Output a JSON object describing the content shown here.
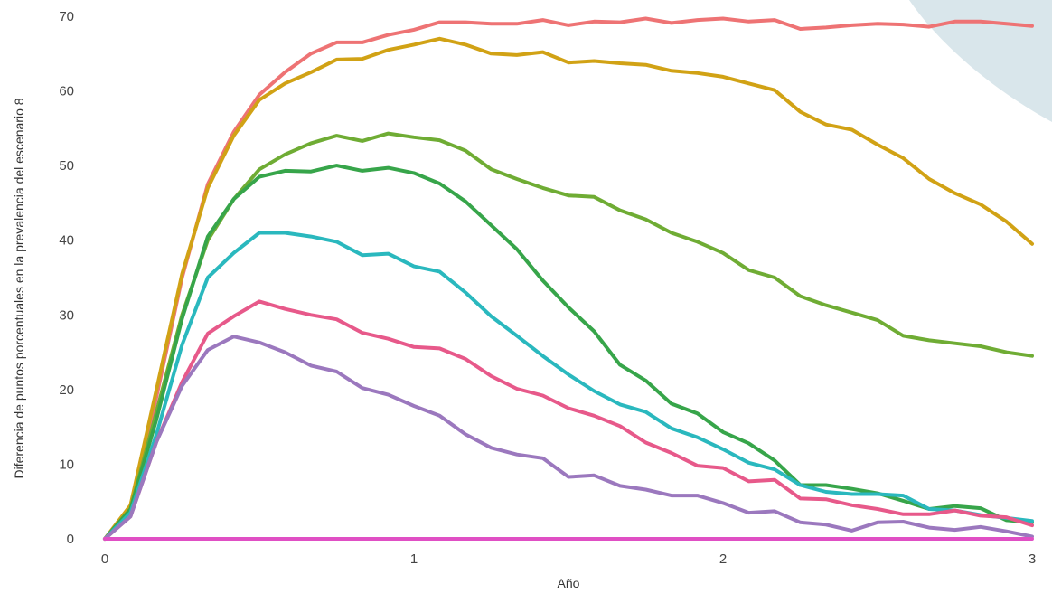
{
  "chart_data": {
    "type": "line",
    "title": "",
    "xlabel": "Año",
    "ylabel": "Diferencia de puntos porcentuales en la prevalencia del escenario 8",
    "xlim": [
      0,
      3
    ],
    "ylim": [
      0,
      70
    ],
    "x_ticks": [
      0,
      1,
      2,
      3
    ],
    "y_ticks": [
      0,
      10,
      20,
      30,
      40,
      50,
      60,
      70
    ],
    "grid": false,
    "legend": "none",
    "series": [
      {
        "color": "#ee7374",
        "points": [
          [
            0,
            0
          ],
          [
            0.083,
            4
          ],
          [
            0.167,
            19
          ],
          [
            0.25,
            35
          ],
          [
            0.333,
            47.5
          ],
          [
            0.417,
            54.5
          ],
          [
            0.5,
            59.5
          ],
          [
            0.583,
            62.5
          ],
          [
            0.667,
            65
          ],
          [
            0.75,
            66.5
          ],
          [
            0.833,
            66.5
          ],
          [
            0.917,
            67.5
          ],
          [
            1.0,
            68.2
          ],
          [
            1.083,
            69.2
          ],
          [
            1.167,
            69.2
          ],
          [
            1.25,
            69
          ],
          [
            1.333,
            69
          ],
          [
            1.417,
            69.5
          ],
          [
            1.5,
            68.8
          ],
          [
            1.583,
            69.3
          ],
          [
            1.667,
            69.2
          ],
          [
            1.75,
            69.7
          ],
          [
            1.833,
            69.1
          ],
          [
            1.917,
            69.5
          ],
          [
            2.0,
            69.7
          ],
          [
            2.083,
            69.3
          ],
          [
            2.167,
            69.5
          ],
          [
            2.25,
            68.3
          ],
          [
            2.333,
            68.5
          ],
          [
            2.417,
            68.8
          ],
          [
            2.5,
            69
          ],
          [
            2.583,
            68.9
          ],
          [
            2.667,
            68.6
          ],
          [
            2.75,
            69.3
          ],
          [
            2.833,
            69.3
          ],
          [
            2.917,
            69
          ],
          [
            3.0,
            68.7
          ]
        ]
      },
      {
        "color": "#d1a215",
        "points": [
          [
            0,
            0
          ],
          [
            0.083,
            4.5
          ],
          [
            0.167,
            20
          ],
          [
            0.25,
            35.5
          ],
          [
            0.333,
            47
          ],
          [
            0.417,
            54
          ],
          [
            0.5,
            58.8
          ],
          [
            0.583,
            61
          ],
          [
            0.667,
            62.5
          ],
          [
            0.75,
            64.2
          ],
          [
            0.833,
            64.3
          ],
          [
            0.917,
            65.5
          ],
          [
            1.0,
            66.2
          ],
          [
            1.083,
            67
          ],
          [
            1.167,
            66.2
          ],
          [
            1.25,
            65
          ],
          [
            1.333,
            64.8
          ],
          [
            1.417,
            65.2
          ],
          [
            1.5,
            63.8
          ],
          [
            1.583,
            64
          ],
          [
            1.667,
            63.7
          ],
          [
            1.75,
            63.5
          ],
          [
            1.833,
            62.7
          ],
          [
            1.917,
            62.4
          ],
          [
            2.0,
            61.9
          ],
          [
            2.083,
            61
          ],
          [
            2.167,
            60.1
          ],
          [
            2.25,
            57.2
          ],
          [
            2.333,
            55.5
          ],
          [
            2.417,
            54.8
          ],
          [
            2.5,
            52.8
          ],
          [
            2.583,
            51
          ],
          [
            2.667,
            48.2
          ],
          [
            2.75,
            46.3
          ],
          [
            2.833,
            44.8
          ],
          [
            2.917,
            42.5
          ],
          [
            3.0,
            39.5
          ]
        ]
      },
      {
        "color": "#6fac34",
        "points": [
          [
            0,
            0
          ],
          [
            0.083,
            4
          ],
          [
            0.167,
            17
          ],
          [
            0.25,
            30
          ],
          [
            0.333,
            40
          ],
          [
            0.417,
            45.5
          ],
          [
            0.5,
            49.5
          ],
          [
            0.583,
            51.5
          ],
          [
            0.667,
            53
          ],
          [
            0.75,
            54
          ],
          [
            0.833,
            53.3
          ],
          [
            0.917,
            54.3
          ],
          [
            1.0,
            53.8
          ],
          [
            1.083,
            53.4
          ],
          [
            1.167,
            52
          ],
          [
            1.25,
            49.5
          ],
          [
            1.333,
            48.2
          ],
          [
            1.417,
            47
          ],
          [
            1.5,
            46
          ],
          [
            1.583,
            45.8
          ],
          [
            1.667,
            44
          ],
          [
            1.75,
            42.8
          ],
          [
            1.833,
            41
          ],
          [
            1.917,
            39.8
          ],
          [
            2.0,
            38.3
          ],
          [
            2.083,
            36
          ],
          [
            2.167,
            35
          ],
          [
            2.25,
            32.5
          ],
          [
            2.333,
            31.3
          ],
          [
            2.417,
            30.3
          ],
          [
            2.5,
            29.3
          ],
          [
            2.583,
            27.2
          ],
          [
            2.667,
            26.6
          ],
          [
            2.75,
            26.2
          ],
          [
            2.833,
            25.8
          ],
          [
            2.917,
            25
          ],
          [
            3.0,
            24.5
          ]
        ]
      },
      {
        "color": "#37a54a",
        "points": [
          [
            0,
            0
          ],
          [
            0.083,
            4
          ],
          [
            0.167,
            16
          ],
          [
            0.25,
            29.5
          ],
          [
            0.333,
            40.5
          ],
          [
            0.417,
            45.5
          ],
          [
            0.5,
            48.5
          ],
          [
            0.583,
            49.3
          ],
          [
            0.667,
            49.2
          ],
          [
            0.75,
            50
          ],
          [
            0.833,
            49.3
          ],
          [
            0.917,
            49.7
          ],
          [
            1.0,
            49
          ],
          [
            1.083,
            47.6
          ],
          [
            1.167,
            45.2
          ],
          [
            1.25,
            42
          ],
          [
            1.333,
            38.8
          ],
          [
            1.417,
            34.6
          ],
          [
            1.5,
            31
          ],
          [
            1.583,
            27.8
          ],
          [
            1.667,
            23.3
          ],
          [
            1.75,
            21.2
          ],
          [
            1.833,
            18.1
          ],
          [
            1.917,
            16.8
          ],
          [
            2.0,
            14.3
          ],
          [
            2.083,
            12.8
          ],
          [
            2.167,
            10.5
          ],
          [
            2.25,
            7.2
          ],
          [
            2.333,
            7.2
          ],
          [
            2.417,
            6.7
          ],
          [
            2.5,
            6.1
          ],
          [
            2.583,
            5.1
          ],
          [
            2.667,
            4
          ],
          [
            2.75,
            4.4
          ],
          [
            2.833,
            4.1
          ],
          [
            2.917,
            2.5
          ],
          [
            3.0,
            2.2
          ]
        ]
      },
      {
        "color": "#2ab8be",
        "points": [
          [
            0,
            0
          ],
          [
            0.083,
            3.5
          ],
          [
            0.167,
            14
          ],
          [
            0.25,
            26
          ],
          [
            0.333,
            35
          ],
          [
            0.417,
            38.3
          ],
          [
            0.5,
            41
          ],
          [
            0.583,
            41
          ],
          [
            0.667,
            40.5
          ],
          [
            0.75,
            39.8
          ],
          [
            0.833,
            38
          ],
          [
            0.917,
            38.2
          ],
          [
            1.0,
            36.5
          ],
          [
            1.083,
            35.8
          ],
          [
            1.167,
            33
          ],
          [
            1.25,
            29.8
          ],
          [
            1.333,
            27.2
          ],
          [
            1.417,
            24.5
          ],
          [
            1.5,
            22
          ],
          [
            1.583,
            19.8
          ],
          [
            1.667,
            18
          ],
          [
            1.75,
            17
          ],
          [
            1.833,
            14.8
          ],
          [
            1.917,
            13.6
          ],
          [
            2.0,
            12
          ],
          [
            2.083,
            10.2
          ],
          [
            2.167,
            9.3
          ],
          [
            2.25,
            7.2
          ],
          [
            2.333,
            6.3
          ],
          [
            2.417,
            6
          ],
          [
            2.5,
            6
          ],
          [
            2.583,
            5.8
          ],
          [
            2.667,
            4
          ],
          [
            2.75,
            3.8
          ],
          [
            2.833,
            3.2
          ],
          [
            2.917,
            2.8
          ],
          [
            3.0,
            2.4
          ]
        ]
      },
      {
        "color": "#e7598a",
        "points": [
          [
            0,
            0
          ],
          [
            0.083,
            3
          ],
          [
            0.167,
            13
          ],
          [
            0.25,
            21
          ],
          [
            0.333,
            27.5
          ],
          [
            0.417,
            29.8
          ],
          [
            0.5,
            31.8
          ],
          [
            0.583,
            30.8
          ],
          [
            0.667,
            30
          ],
          [
            0.75,
            29.4
          ],
          [
            0.833,
            27.6
          ],
          [
            0.917,
            26.8
          ],
          [
            1.0,
            25.7
          ],
          [
            1.083,
            25.5
          ],
          [
            1.167,
            24.1
          ],
          [
            1.25,
            21.8
          ],
          [
            1.333,
            20.1
          ],
          [
            1.417,
            19.2
          ],
          [
            1.5,
            17.5
          ],
          [
            1.583,
            16.5
          ],
          [
            1.667,
            15.1
          ],
          [
            1.75,
            12.9
          ],
          [
            1.833,
            11.5
          ],
          [
            1.917,
            9.8
          ],
          [
            2.0,
            9.5
          ],
          [
            2.083,
            7.7
          ],
          [
            2.167,
            7.9
          ],
          [
            2.25,
            5.4
          ],
          [
            2.333,
            5.3
          ],
          [
            2.417,
            4.5
          ],
          [
            2.5,
            4
          ],
          [
            2.583,
            3.3
          ],
          [
            2.667,
            3.3
          ],
          [
            2.75,
            3.8
          ],
          [
            2.833,
            3.1
          ],
          [
            2.917,
            2.9
          ],
          [
            3.0,
            1.8
          ]
        ]
      },
      {
        "color": "#9b78be",
        "points": [
          [
            0,
            0
          ],
          [
            0.083,
            3
          ],
          [
            0.167,
            13
          ],
          [
            0.25,
            20.5
          ],
          [
            0.333,
            25.3
          ],
          [
            0.417,
            27.1
          ],
          [
            0.5,
            26.3
          ],
          [
            0.583,
            25
          ],
          [
            0.667,
            23.2
          ],
          [
            0.75,
            22.4
          ],
          [
            0.833,
            20.2
          ],
          [
            0.917,
            19.3
          ],
          [
            1.0,
            17.8
          ],
          [
            1.083,
            16.5
          ],
          [
            1.167,
            14
          ],
          [
            1.25,
            12.2
          ],
          [
            1.333,
            11.3
          ],
          [
            1.417,
            10.8
          ],
          [
            1.5,
            8.3
          ],
          [
            1.583,
            8.5
          ],
          [
            1.667,
            7.1
          ],
          [
            1.75,
            6.6
          ],
          [
            1.833,
            5.8
          ],
          [
            1.917,
            5.8
          ],
          [
            2.0,
            4.8
          ],
          [
            2.083,
            3.5
          ],
          [
            2.167,
            3.7
          ],
          [
            2.25,
            2.2
          ],
          [
            2.333,
            1.9
          ],
          [
            2.417,
            1.1
          ],
          [
            2.5,
            2.2
          ],
          [
            2.583,
            2.3
          ],
          [
            2.667,
            1.5
          ],
          [
            2.75,
            1.2
          ],
          [
            2.833,
            1.6
          ],
          [
            2.917,
            1
          ],
          [
            3.0,
            0.3
          ]
        ]
      },
      {
        "color": "#e04fc4",
        "points": [
          [
            0,
            0
          ],
          [
            3.0,
            0
          ]
        ]
      }
    ]
  }
}
